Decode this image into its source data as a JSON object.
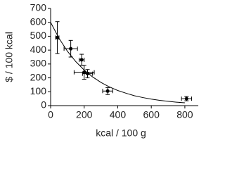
{
  "chart_data": {
    "type": "scatter",
    "xlabel": "kcal / 100 g",
    "ylabel": "$ / 100 kcal",
    "xlim": [
      0,
      880
    ],
    "xticks": [
      0,
      200,
      400,
      600,
      800
    ],
    "ylim": [
      0,
      700
    ],
    "yticks": [
      0,
      100,
      200,
      300,
      400,
      500,
      600,
      700
    ],
    "color": "#000000",
    "x": [
      40,
      120,
      185,
      200,
      220,
      340,
      810
    ],
    "values": [
      490,
      410,
      330,
      240,
      230,
      105,
      50
    ],
    "xerr": [
      10,
      40,
      15,
      60,
      30,
      30,
      30
    ],
    "yerr": [
      115,
      60,
      40,
      50,
      30,
      25,
      15
    ],
    "curve": {
      "x": [
        0,
        50,
        100,
        150,
        200,
        250,
        300,
        350,
        400,
        450,
        500,
        550,
        600,
        650,
        700,
        750,
        800
      ],
      "values": [
        600,
        485,
        392,
        317,
        256,
        207,
        167,
        135,
        109,
        89,
        71,
        58,
        47,
        38,
        31,
        25,
        20
      ]
    }
  }
}
